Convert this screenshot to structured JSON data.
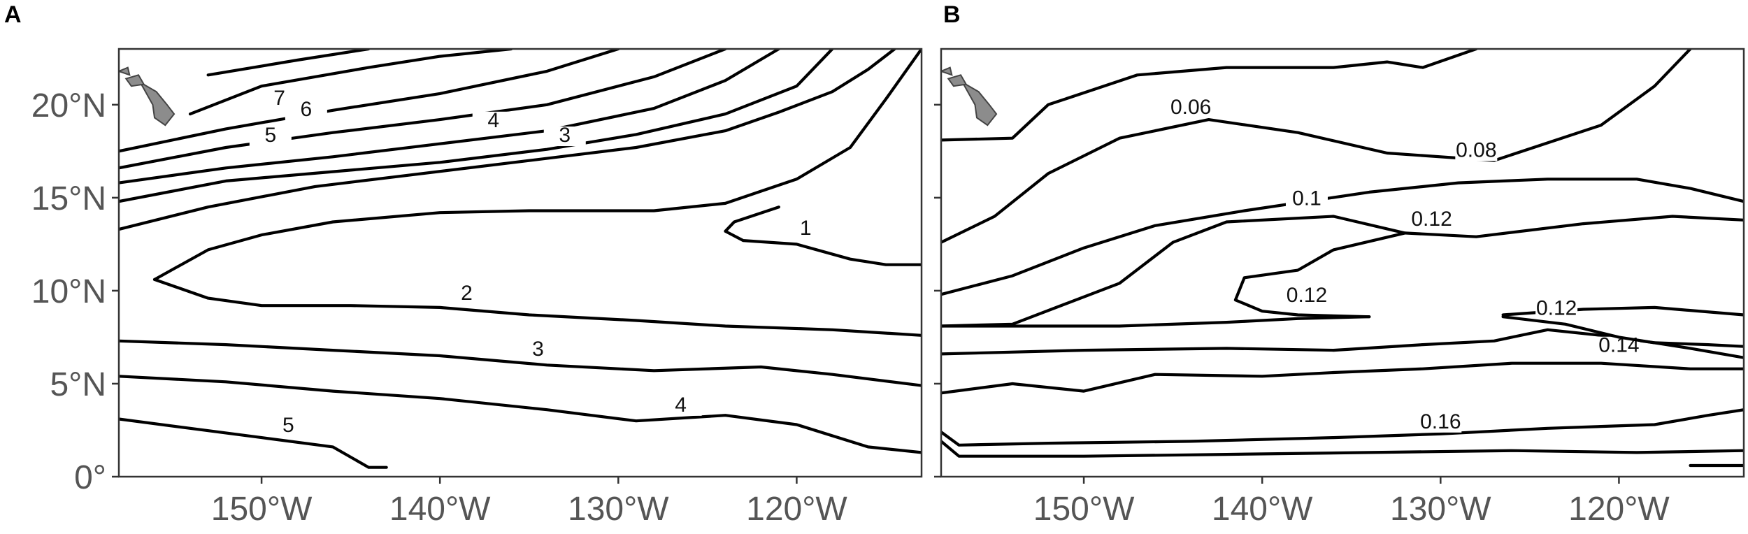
{
  "chart_data": [
    {
      "type": "contour",
      "panel": "A",
      "xlim": [
        -158,
        -113
      ],
      "ylim": [
        0,
        23
      ],
      "x_ticks": [
        -150,
        -140,
        -130,
        -120
      ],
      "y_ticks": [
        0,
        5,
        10,
        15,
        20
      ],
      "x_tick_labels": [
        "150°W",
        "140°W",
        "130°W",
        "120°W"
      ],
      "y_tick_labels": [
        "0°",
        "5°N",
        "10°N",
        "15°N",
        "20°N"
      ],
      "contours": [
        {
          "label": "7",
          "label_at": [
            -149,
            20
          ],
          "points": [
            [
              -153,
              21.6
            ],
            [
              -148,
              22.4
            ],
            [
              -144,
              23
            ]
          ]
        },
        {
          "label": "",
          "points": [
            [
              -154,
              19.5
            ],
            [
              -150,
              21
            ],
            [
              -144,
              22
            ],
            [
              -140,
              22.6
            ],
            [
              -136,
              23
            ]
          ]
        },
        {
          "label": "6",
          "label_at": [
            -147.5,
            19.4
          ],
          "points": [
            [
              -158,
              17.5
            ],
            [
              -152,
              18.7
            ],
            [
              -146,
              19.7
            ],
            [
              -140,
              20.6
            ],
            [
              -134,
              21.8
            ],
            [
              -130,
              23
            ]
          ]
        },
        {
          "label": "5",
          "label_at": [
            -149.5,
            18
          ],
          "points": [
            [
              -158,
              16.6
            ],
            [
              -152,
              17.7
            ],
            [
              -146,
              18.5
            ],
            [
              -140,
              19.2
            ],
            [
              -134,
              20
            ],
            [
              -128,
              21.5
            ],
            [
              -124,
              23
            ]
          ]
        },
        {
          "label": "4",
          "label_at": [
            -137,
            18.8
          ],
          "points": [
            [
              -158,
              15.8
            ],
            [
              -152,
              16.6
            ],
            [
              -146,
              17.2
            ],
            [
              -140,
              17.9
            ],
            [
              -134,
              18.6
            ],
            [
              -128,
              19.8
            ],
            [
              -124,
              21.3
            ],
            [
              -121,
              23
            ]
          ]
        },
        {
          "label": "3",
          "label_at": [
            -133,
            18
          ],
          "points": [
            [
              -158,
              14.8
            ],
            [
              -152,
              15.9
            ],
            [
              -146,
              16.4
            ],
            [
              -140,
              16.9
            ],
            [
              -134,
              17.6
            ],
            [
              -129,
              18.4
            ],
            [
              -124,
              19.5
            ],
            [
              -120,
              21
            ],
            [
              -118,
              23
            ]
          ]
        },
        {
          "label": "",
          "points": [
            [
              -158,
              13.3
            ],
            [
              -153,
              14.5
            ],
            [
              -147,
              15.6
            ],
            [
              -141,
              16.3
            ],
            [
              -135,
              17
            ],
            [
              -129,
              17.7
            ],
            [
              -124,
              18.6
            ],
            [
              -121,
              19.6
            ],
            [
              -118,
              20.7
            ],
            [
              -116,
              21.9
            ],
            [
              -114.5,
              23
            ]
          ]
        },
        {
          "label": "2",
          "label_at": [
            -138.5,
            9.5
          ],
          "points": [
            [
              -156,
              10.6
            ],
            [
              -153,
              12.2
            ],
            [
              -150,
              13
            ],
            [
              -146,
              13.7
            ],
            [
              -140,
              14.2
            ],
            [
              -135,
              14.3
            ],
            [
              -128,
              14.3
            ],
            [
              -124,
              14.7
            ],
            [
              -120,
              16
            ],
            [
              -117,
              17.7
            ],
            [
              -115,
              20.3
            ],
            [
              -113,
              23
            ]
          ]
        },
        {
          "label": "",
          "points": [
            [
              -156,
              10.6
            ],
            [
              -153,
              9.6
            ],
            [
              -150,
              9.2
            ],
            [
              -145,
              9.2
            ],
            [
              -140,
              9.1
            ],
            [
              -135,
              8.7
            ],
            [
              -129,
              8.4
            ],
            [
              -124,
              8.1
            ],
            [
              -118,
              7.9
            ],
            [
              -113,
              7.6
            ]
          ]
        },
        {
          "label": "1",
          "label_at": [
            -119.5,
            13
          ],
          "points": [
            [
              -121,
              14.5
            ],
            [
              -123.5,
              13.7
            ],
            [
              -124,
              13.2
            ],
            [
              -123,
              12.7
            ],
            [
              -120,
              12.5
            ],
            [
              -117,
              11.7
            ],
            [
              -115,
              11.4
            ],
            [
              -113,
              11.4
            ]
          ]
        },
        {
          "label": "3",
          "label_at": [
            -134.5,
            6.5
          ],
          "points": [
            [
              -158,
              7.3
            ],
            [
              -152,
              7.1
            ],
            [
              -146,
              6.8
            ],
            [
              -140,
              6.5
            ],
            [
              -134,
              6
            ],
            [
              -128,
              5.7
            ],
            [
              -122,
              5.9
            ],
            [
              -118,
              5.5
            ],
            [
              -113,
              4.9
            ]
          ]
        },
        {
          "label": "4",
          "label_at": [
            -126.5,
            3.5
          ],
          "points": [
            [
              -158,
              5.4
            ],
            [
              -152,
              5.1
            ],
            [
              -146,
              4.6
            ],
            [
              -140,
              4.2
            ],
            [
              -134,
              3.6
            ],
            [
              -129,
              3
            ],
            [
              -124,
              3.3
            ],
            [
              -120,
              2.8
            ],
            [
              -116,
              1.6
            ],
            [
              -113,
              1.3
            ]
          ]
        },
        {
          "label": "5",
          "label_at": [
            -148.5,
            2.4
          ],
          "points": [
            [
              -158,
              3.1
            ],
            [
              -154,
              2.6
            ],
            [
              -150,
              2.1
            ],
            [
              -146,
              1.6
            ],
            [
              -144,
              0.5
            ],
            [
              -143,
              0.5
            ]
          ]
        }
      ]
    },
    {
      "type": "contour",
      "panel": "B",
      "xlim": [
        -158,
        -113
      ],
      "ylim": [
        0,
        23
      ],
      "x_ticks": [
        -150,
        -140,
        -130,
        -120
      ],
      "y_ticks": [
        0,
        5,
        10,
        15,
        20
      ],
      "x_tick_labels": [
        "150°W",
        "140°W",
        "130°W",
        "120°W"
      ],
      "y_tick_labels": [
        "0°",
        "5°N",
        "10°N",
        "15°N",
        "20°N"
      ],
      "contours": [
        {
          "label": "0.06",
          "label_at": [
            -144,
            19.5
          ],
          "points": [
            [
              -158,
              18.1
            ],
            [
              -154,
              18.2
            ],
            [
              -152,
              20
            ],
            [
              -147,
              21.6
            ],
            [
              -142,
              22
            ],
            [
              -136,
              22
            ],
            [
              -133,
              22.3
            ],
            [
              -131,
              22
            ],
            [
              -128,
              23
            ]
          ]
        },
        {
          "label": "0.08",
          "label_at": [
            -128,
            17.2
          ],
          "points": [
            [
              -158,
              12.6
            ],
            [
              -155,
              14
            ],
            [
              -152,
              16.3
            ],
            [
              -148,
              18.2
            ],
            [
              -143,
              19.2
            ],
            [
              -138,
              18.5
            ],
            [
              -133,
              17.4
            ],
            [
              -127,
              17
            ],
            [
              -121,
              18.9
            ],
            [
              -118,
              21
            ],
            [
              -116,
              23
            ]
          ]
        },
        {
          "label": "0.1",
          "label_at": [
            -137.5,
            14.6
          ],
          "points": [
            [
              -158,
              9.8
            ],
            [
              -154,
              10.8
            ],
            [
              -150,
              12.3
            ],
            [
              -146,
              13.5
            ],
            [
              -141,
              14.3
            ],
            [
              -134,
              15.3
            ],
            [
              -129,
              15.8
            ],
            [
              -124,
              16
            ],
            [
              -119,
              16
            ],
            [
              -116,
              15.5
            ],
            [
              -113,
              14.8
            ]
          ]
        },
        {
          "label": "0.12",
          "label_at": [
            -130.5,
            13.5
          ],
          "points": [
            [
              -158,
              8.1
            ],
            [
              -154,
              8.2
            ],
            [
              -151,
              9.3
            ],
            [
              -148,
              10.4
            ],
            [
              -145,
              12.6
            ],
            [
              -142,
              13.7
            ],
            [
              -136,
              14
            ],
            [
              -132,
              13.1
            ],
            [
              -128,
              12.9
            ],
            [
              -122,
              13.6
            ],
            [
              -117,
              14
            ],
            [
              -113,
              13.8
            ]
          ]
        },
        {
          "label": "0.12",
          "label_at": [
            -137.5,
            9.4
          ],
          "points": [
            [
              -134,
              8.6
            ],
            [
              -138,
              8.7
            ],
            [
              -140,
              8.9
            ],
            [
              -141.5,
              9.5
            ],
            [
              -141,
              10.7
            ],
            [
              -138,
              11.1
            ],
            [
              -136,
              12.2
            ],
            [
              -132,
              13.1
            ]
          ]
        },
        {
          "label": "",
          "points": [
            [
              -134,
              8.6
            ],
            [
              -138,
              8.5
            ],
            [
              -142,
              8.3
            ],
            [
              -148,
              8.1
            ],
            [
              -158,
              8.1
            ]
          ]
        },
        {
          "label": "0.12",
          "label_at": [
            -123.5,
            8.7
          ],
          "points": [
            [
              -126.5,
              8.7
            ],
            [
              -122,
              9
            ],
            [
              -118,
              9.1
            ],
            [
              -113,
              8.7
            ]
          ]
        },
        {
          "label": "0.14",
          "label_at": [
            -120,
            6.7
          ],
          "points": [
            [
              -158,
              6.6
            ],
            [
              -150,
              6.8
            ],
            [
              -142,
              6.9
            ],
            [
              -136,
              6.8
            ],
            [
              -131,
              7.1
            ],
            [
              -127,
              7.3
            ],
            [
              -124,
              7.9
            ],
            [
              -121,
              7.6
            ],
            [
              -118,
              7.2
            ],
            [
              -115,
              7.1
            ],
            [
              -113,
              7
            ]
          ]
        },
        {
          "label": "",
          "points": [
            [
              -126.5,
              8.6
            ],
            [
              -123,
              8.2
            ],
            [
              -120,
              7.5
            ],
            [
              -116,
              6.9
            ],
            [
              -113,
              6.4
            ]
          ]
        },
        {
          "label": "",
          "points": [
            [
              -158,
              4.5
            ],
            [
              -154,
              5
            ],
            [
              -150,
              4.6
            ],
            [
              -146,
              5.5
            ],
            [
              -140,
              5.4
            ],
            [
              -136,
              5.6
            ],
            [
              -131,
              5.8
            ],
            [
              -126,
              6.1
            ],
            [
              -121,
              6.1
            ],
            [
              -116,
              5.8
            ],
            [
              -113,
              5.8
            ]
          ]
        },
        {
          "label": "0.16",
          "label_at": [
            -130,
            2.6
          ],
          "points": [
            [
              -158,
              2.4
            ],
            [
              -157,
              1.7
            ],
            [
              -152,
              1.8
            ],
            [
              -144,
              1.9
            ],
            [
              -136,
              2.1
            ],
            [
              -130,
              2.3
            ],
            [
              -124,
              2.6
            ],
            [
              -118,
              2.8
            ],
            [
              -115,
              3.3
            ],
            [
              -113,
              3.6
            ]
          ]
        },
        {
          "label": "",
          "points": [
            [
              -158,
              1.9
            ],
            [
              -157,
              1.1
            ],
            [
              -150,
              1.1
            ],
            [
              -142,
              1.2
            ],
            [
              -134,
              1.3
            ],
            [
              -126,
              1.4
            ],
            [
              -119,
              1.3
            ],
            [
              -113,
              1.4
            ]
          ]
        },
        {
          "label": "",
          "points": [
            [
              -116,
              0.6
            ],
            [
              -113,
              0.6
            ]
          ]
        }
      ]
    }
  ],
  "panels": {
    "a": {
      "letter": "A"
    },
    "b": {
      "letter": "B"
    }
  },
  "colors": {
    "contour": "#000000",
    "tick_text": "#555555",
    "land": "#8c8c8c"
  }
}
